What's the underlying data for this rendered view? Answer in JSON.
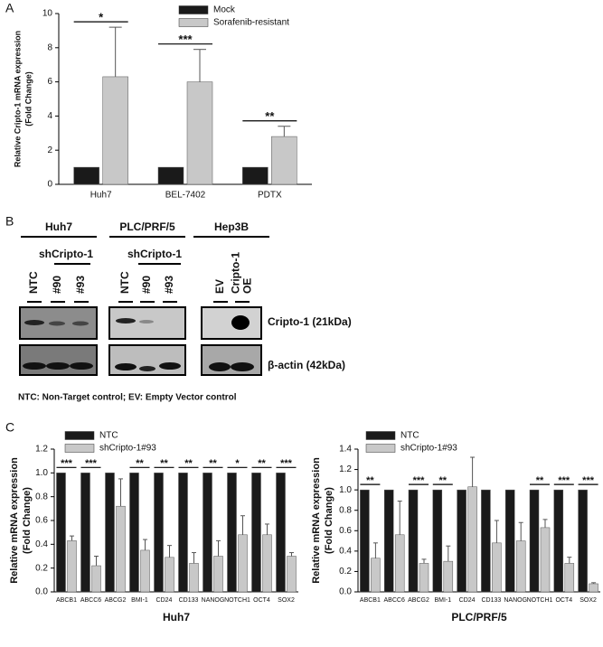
{
  "panel_labels": [
    "A",
    "B",
    "C"
  ],
  "chart_data": [
    {
      "type": "bar",
      "y_label": [
        "Relative Cripto-1 mRNA expression",
        "(Fold Change)"
      ],
      "categories": [
        "Huh7",
        "BEL-7402",
        "PDTX"
      ],
      "series": [
        {
          "name": "Mock",
          "color": "#1a1a1a",
          "values": [
            1,
            1,
            1
          ]
        },
        {
          "name": "Sorafenib-resistant",
          "color": "#c8c8c8",
          "values": [
            6.3,
            6.0,
            2.8
          ],
          "errors": [
            2.9,
            1.9,
            0.6
          ]
        }
      ],
      "significance": [
        "*",
        "***",
        "**"
      ],
      "ylim": [
        0,
        10
      ],
      "yticks": [
        0,
        2,
        4,
        6,
        8,
        10
      ]
    },
    {
      "type": "bar",
      "x_label": "Huh7",
      "y_label": [
        "Relative mRNA expression",
        "(Fold Change)"
      ],
      "categories": [
        "ABCB1",
        "ABCC6",
        "ABCG2",
        "BMI-1",
        "CD24",
        "CD133",
        "NANOG",
        "NOTCH1",
        "OCT4",
        "SOX2"
      ],
      "series": [
        {
          "name": "NTC",
          "color": "#1a1a1a",
          "values": [
            1,
            1,
            1,
            1,
            1,
            1,
            1,
            1,
            1,
            1
          ]
        },
        {
          "name": "shCripto-1#93",
          "color": "#c8c8c8",
          "values": [
            0.43,
            0.22,
            0.72,
            0.35,
            0.29,
            0.24,
            0.3,
            0.48,
            0.48,
            0.3
          ],
          "errors": [
            0.04,
            0.08,
            0.23,
            0.09,
            0.1,
            0.09,
            0.13,
            0.16,
            0.09,
            0.03
          ]
        }
      ],
      "significance": [
        "***",
        "***",
        null,
        "**",
        "**",
        "**",
        "**",
        "*",
        "**",
        "***"
      ],
      "ylim": [
        0,
        1.2
      ],
      "yticks": [
        {
          "value": 0,
          "label": "0.0"
        },
        0.2,
        0.4,
        0.6,
        0.8,
        {
          "value": 1,
          "label": "1.0"
        },
        1.2
      ]
    },
    {
      "type": "bar",
      "x_label": "PLC/PRF/5",
      "y_label": [
        "Relative mRNA expression",
        "(Fold Change)"
      ],
      "categories": [
        "ABCB1",
        "ABCC6",
        "ABCG2",
        "BMI-1",
        "CD24",
        "CD133",
        "NANOG",
        "NOTCH1",
        "OCT4",
        "SOX2"
      ],
      "series": [
        {
          "name": "NTC",
          "color": "#1a1a1a",
          "values": [
            1,
            1,
            1,
            1,
            1,
            1,
            1,
            1,
            1,
            1
          ]
        },
        {
          "name": "shCripto-1#93",
          "color": "#c8c8c8",
          "values": [
            0.33,
            0.56,
            0.28,
            0.3,
            1.03,
            0.48,
            0.5,
            0.63,
            0.28,
            0.08
          ],
          "errors": [
            0.15,
            0.33,
            0.04,
            0.15,
            0.29,
            0.22,
            0.18,
            0.08,
            0.06,
            0.01
          ]
        }
      ],
      "significance": [
        "**",
        null,
        "***",
        "**",
        null,
        null,
        null,
        "**",
        "***",
        "***"
      ],
      "ylim": [
        0,
        1.4
      ],
      "yticks": [
        {
          "value": 0,
          "label": "0.0"
        },
        0.2,
        0.4,
        0.6,
        0.8,
        {
          "value": 1,
          "label": "1.0"
        },
        1.2,
        1.4
      ]
    }
  ],
  "western_blot": {
    "groups": [
      {
        "title": "Huh7",
        "subtitle": "shCripto-1",
        "lanes": [
          "NTC",
          "#90",
          "#93"
        ]
      },
      {
        "title": "PLC/PRF/5",
        "subtitle": "shCripto-1",
        "lanes": [
          "NTC",
          "#90",
          "#93"
        ]
      },
      {
        "title": "Hep3B",
        "lanes": [
          "EV",
          [
            "Cripto-1",
            "OE"
          ]
        ]
      }
    ],
    "rows": [
      "Cripto-1 (21kDa)",
      "β-actin (42kDa)"
    ],
    "footnote": "NTC: Non-Target control; EV: Empty Vector control"
  }
}
